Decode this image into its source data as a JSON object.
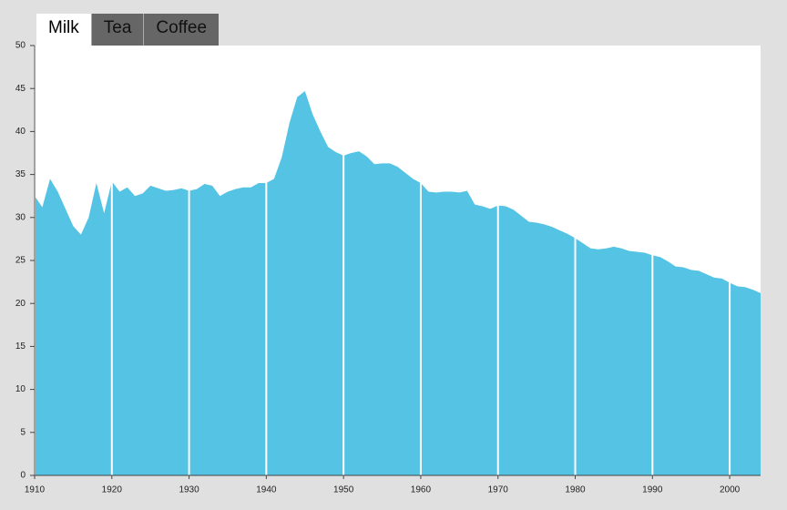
{
  "tabs": [
    "Milk",
    "Tea",
    "Coffee"
  ],
  "selected_tab": 0,
  "chart_data": {
    "type": "area",
    "color": "#55c3e3",
    "grid": true,
    "x": [
      1910,
      1911,
      1912,
      1913,
      1914,
      1915,
      1916,
      1917,
      1918,
      1919,
      1920,
      1921,
      1922,
      1923,
      1924,
      1925,
      1926,
      1927,
      1928,
      1929,
      1930,
      1931,
      1932,
      1933,
      1934,
      1935,
      1936,
      1937,
      1938,
      1939,
      1940,
      1941,
      1942,
      1943,
      1944,
      1945,
      1946,
      1947,
      1948,
      1949,
      1950,
      1951,
      1952,
      1953,
      1954,
      1955,
      1956,
      1957,
      1958,
      1959,
      1960,
      1961,
      1962,
      1963,
      1964,
      1965,
      1966,
      1967,
      1968,
      1969,
      1970,
      1971,
      1972,
      1973,
      1974,
      1975,
      1976,
      1977,
      1978,
      1979,
      1980,
      1981,
      1982,
      1983,
      1984,
      1985,
      1986,
      1987,
      1988,
      1989,
      1990,
      1991,
      1992,
      1993,
      1994,
      1995,
      1996,
      1997,
      1998,
      1999,
      2000,
      2001,
      2002,
      2003,
      2004
    ],
    "values": [
      32.5,
      31.2,
      34.5,
      33,
      31,
      29,
      28,
      30,
      34,
      30.5,
      34.2,
      33,
      33.5,
      32.5,
      32.8,
      33.7,
      33.4,
      33.1,
      33.2,
      33.4,
      33.1,
      33.3,
      33.9,
      33.7,
      32.5,
      33,
      33.3,
      33.5,
      33.5,
      34,
      34,
      34.5,
      37,
      41,
      44,
      44.7,
      42,
      40,
      38.2,
      37.6,
      37.2,
      37.5,
      37.7,
      37.1,
      36.2,
      36.3,
      36.3,
      35.9,
      35.2,
      34.5,
      34,
      33,
      32.9,
      33,
      33,
      32.9,
      33.1,
      31.5,
      31.3,
      31,
      31.4,
      31.3,
      30.9,
      30.2,
      29.5,
      29.4,
      29.2,
      28.9,
      28.5,
      28.1,
      27.6,
      27,
      26.4,
      26.3,
      26.4,
      26.6,
      26.4,
      26.1,
      26,
      25.9,
      25.6,
      25.4,
      24.9,
      24.3,
      24.2,
      23.9,
      23.8,
      23.4,
      23,
      22.9,
      22.4,
      22,
      21.9,
      21.6,
      21.2
    ],
    "xlim": [
      1910,
      2004
    ],
    "xticks": [
      1910,
      1920,
      1930,
      1940,
      1950,
      1960,
      1970,
      1980,
      1990,
      2000
    ],
    "ylim": [
      0,
      50
    ],
    "yticks": [
      0,
      5,
      10,
      15,
      20,
      25,
      30,
      35,
      40,
      45,
      50
    ]
  }
}
